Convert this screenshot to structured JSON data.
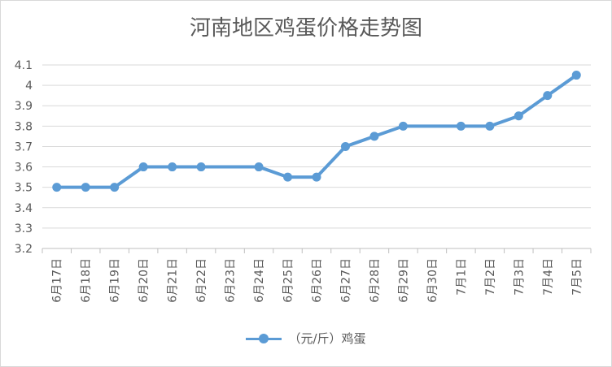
{
  "chart_data": {
    "type": "line",
    "title": "河南地区鸡蛋价格走势图",
    "categories": [
      "6月17日",
      "6月18日",
      "6月19日",
      "6月20日",
      "6月21日",
      "6月22日",
      "6月23日",
      "6月24日",
      "6月25日",
      "6月26日",
      "6月27日",
      "6月28日",
      "6月29日",
      "6月30日",
      "7月1日",
      "7月2日",
      "7月3日",
      "7月4日",
      "7月5日"
    ],
    "series": [
      {
        "name": "（元/斤）鸡蛋",
        "color": "#5b9bd5",
        "points": [
          {
            "category": "6月17日",
            "value": 3.5
          },
          {
            "category": "6月18日",
            "value": 3.5
          },
          {
            "category": "6月19日",
            "value": 3.5
          },
          {
            "category": "6月20日",
            "value": 3.6
          },
          {
            "category": "6月21日",
            "value": 3.6
          },
          {
            "category": "6月22日",
            "value": 3.6
          },
          {
            "category": "6月24日",
            "value": 3.6
          },
          {
            "category": "6月25日",
            "value": 3.55
          },
          {
            "category": "6月26日",
            "value": 3.55
          },
          {
            "category": "6月27日",
            "value": 3.7
          },
          {
            "category": "6月28日",
            "value": 3.75
          },
          {
            "category": "6月29日",
            "value": 3.8
          },
          {
            "category": "7月1日",
            "value": 3.8
          },
          {
            "category": "7月2日",
            "value": 3.8
          },
          {
            "category": "7月3日",
            "value": 3.85
          },
          {
            "category": "7月4日",
            "value": 3.95
          },
          {
            "category": "7月5日",
            "value": 4.05
          }
        ]
      }
    ],
    "y_ticks": [
      "3.2",
      "3.3",
      "3.4",
      "3.5",
      "3.6",
      "3.7",
      "3.8",
      "3.9",
      "4",
      "4.1"
    ],
    "ylim": [
      3.2,
      4.1
    ],
    "grid": true,
    "legend_position": "bottom"
  }
}
